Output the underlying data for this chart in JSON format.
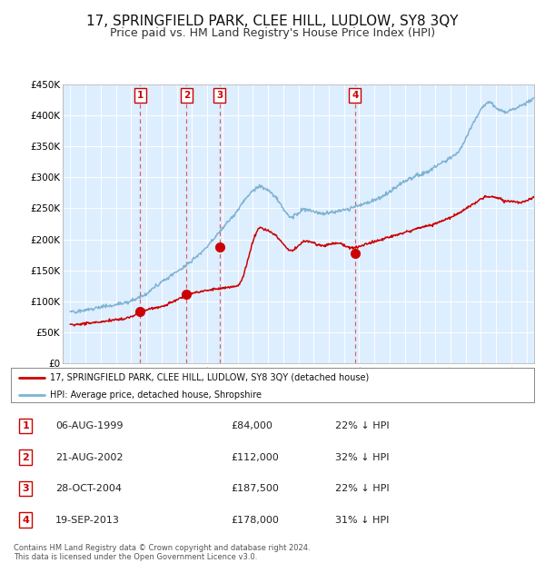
{
  "title": "17, SPRINGFIELD PARK, CLEE HILL, LUDLOW, SY8 3QY",
  "subtitle": "Price paid vs. HM Land Registry's House Price Index (HPI)",
  "title_fontsize": 11,
  "subtitle_fontsize": 9,
  "background_color": "#ffffff",
  "plot_bg_color": "#ddeeff",
  "grid_color": "#ccddee",
  "ylabel_ticks": [
    "£0",
    "£50K",
    "£100K",
    "£150K",
    "£200K",
    "£250K",
    "£300K",
    "£350K",
    "£400K",
    "£450K"
  ],
  "ytick_values": [
    0,
    50000,
    100000,
    150000,
    200000,
    250000,
    300000,
    350000,
    400000,
    450000
  ],
  "xlim_start": 1994.5,
  "xlim_end": 2025.5,
  "ylim_min": 0,
  "ylim_max": 450000,
  "red_line_color": "#cc0000",
  "blue_line_color": "#7fb3d3",
  "marker_color": "#cc0000",
  "dashed_color": "#dd4444",
  "sale_events": [
    {
      "label": "1",
      "date_num": 1999.59,
      "price": 84000
    },
    {
      "label": "2",
      "date_num": 2002.64,
      "price": 112000
    },
    {
      "label": "3",
      "date_num": 2004.82,
      "price": 187500
    },
    {
      "label": "4",
      "date_num": 2013.72,
      "price": 178000
    }
  ],
  "legend_entries": [
    "17, SPRINGFIELD PARK, CLEE HILL, LUDLOW, SY8 3QY (detached house)",
    "HPI: Average price, detached house, Shropshire"
  ],
  "table_rows": [
    {
      "num": "1",
      "date": "06-AUG-1999",
      "price": "£84,000",
      "hpi": "22% ↓ HPI"
    },
    {
      "num": "2",
      "date": "21-AUG-2002",
      "price": "£112,000",
      "hpi": "32% ↓ HPI"
    },
    {
      "num": "3",
      "date": "28-OCT-2004",
      "price": "£187,500",
      "hpi": "22% ↓ HPI"
    },
    {
      "num": "4",
      "date": "19-SEP-2013",
      "price": "£178,000",
      "hpi": "31% ↓ HPI"
    }
  ],
  "footer": "Contains HM Land Registry data © Crown copyright and database right 2024.\nThis data is licensed under the Open Government Licence v3.0."
}
